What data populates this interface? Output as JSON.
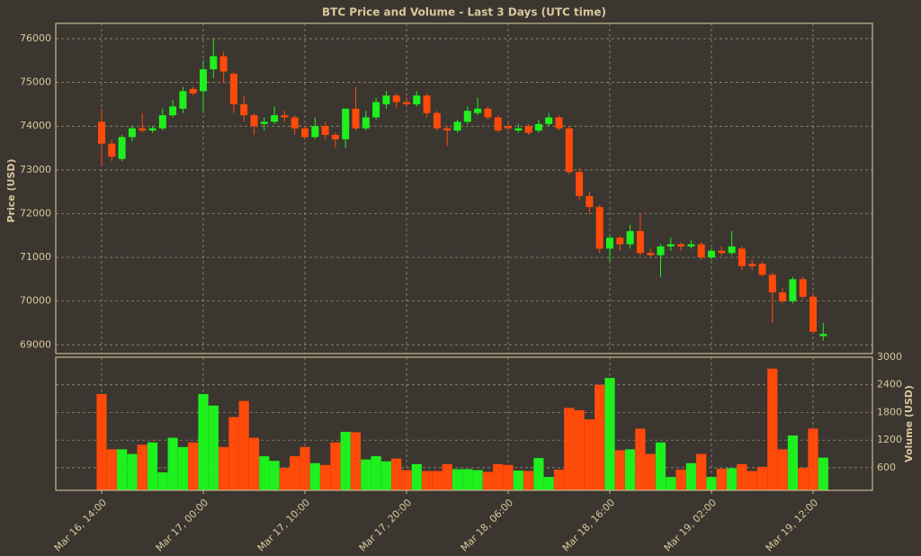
{
  "chart_data": {
    "type": "candlestick",
    "title": "BTC Price and Volume - Last 3 Days (UTC time)",
    "ylabel": "Price (USD)",
    "y2label": "Volume (USD)",
    "x": [
      "Mar 16, 14:00",
      "Mar 16, 15:00",
      "Mar 16, 16:00",
      "Mar 16, 17:00",
      "Mar 16, 18:00",
      "Mar 16, 19:00",
      "Mar 16, 20:00",
      "Mar 16, 21:00",
      "Mar 16, 22:00",
      "Mar 16, 23:00",
      "Mar 17, 00:00",
      "Mar 17, 01:00",
      "Mar 17, 02:00",
      "Mar 17, 03:00",
      "Mar 17, 04:00",
      "Mar 17, 05:00",
      "Mar 17, 06:00",
      "Mar 17, 07:00",
      "Mar 17, 08:00",
      "Mar 17, 09:00",
      "Mar 17, 10:00",
      "Mar 17, 11:00",
      "Mar 17, 12:00",
      "Mar 17, 13:00",
      "Mar 17, 14:00",
      "Mar 17, 15:00",
      "Mar 17, 16:00",
      "Mar 17, 17:00",
      "Mar 17, 18:00",
      "Mar 17, 19:00",
      "Mar 17, 20:00",
      "Mar 17, 21:00",
      "Mar 17, 22:00",
      "Mar 17, 23:00",
      "Mar 18, 00:00",
      "Mar 18, 01:00",
      "Mar 18, 02:00",
      "Mar 18, 03:00",
      "Mar 18, 04:00",
      "Mar 18, 05:00",
      "Mar 18, 06:00",
      "Mar 18, 07:00",
      "Mar 18, 08:00",
      "Mar 18, 09:00",
      "Mar 18, 10:00",
      "Mar 18, 11:00",
      "Mar 18, 12:00",
      "Mar 18, 13:00",
      "Mar 18, 14:00",
      "Mar 18, 15:00",
      "Mar 18, 16:00",
      "Mar 18, 17:00",
      "Mar 18, 18:00",
      "Mar 18, 19:00",
      "Mar 18, 20:00",
      "Mar 18, 21:00",
      "Mar 18, 22:00",
      "Mar 18, 23:00",
      "Mar 19, 00:00",
      "Mar 19, 01:00",
      "Mar 19, 02:00",
      "Mar 19, 03:00",
      "Mar 19, 04:00",
      "Mar 19, 05:00",
      "Mar 19, 06:00",
      "Mar 19, 07:00",
      "Mar 19, 08:00",
      "Mar 19, 09:00",
      "Mar 19, 10:00",
      "Mar 19, 11:00",
      "Mar 19, 12:00",
      "Mar 19, 13:00"
    ],
    "open": [
      74100,
      73600,
      73250,
      73750,
      73950,
      73900,
      73950,
      74250,
      74400,
      74850,
      74800,
      75300,
      75600,
      75200,
      74500,
      74250,
      74050,
      74100,
      74250,
      74200,
      73950,
      73750,
      74000,
      73800,
      73700,
      74400,
      73950,
      74200,
      74500,
      74700,
      74550,
      74500,
      74700,
      74300,
      73950,
      73900,
      74100,
      74300,
      74400,
      74200,
      74000,
      73900,
      74000,
      73900,
      74050,
      74200,
      73950,
      72950,
      72400,
      72150,
      71200,
      71450,
      71300,
      71600,
      71100,
      71050,
      71250,
      71300,
      71250,
      71300,
      71000,
      71150,
      71100,
      71200,
      70850,
      70850,
      70600,
      70200,
      70000,
      70500,
      70100,
      69200
    ],
    "high": [
      74400,
      73700,
      73800,
      74000,
      74300,
      74000,
      74400,
      74600,
      74900,
      74900,
      75500,
      76000,
      75700,
      75250,
      74700,
      74300,
      74200,
      74450,
      74350,
      74250,
      74000,
      74200,
      74100,
      73850,
      74400,
      74900,
      74350,
      74650,
      74800,
      74750,
      74650,
      74800,
      74750,
      74350,
      74000,
      74150,
      74450,
      74650,
      74450,
      74250,
      74100,
      74050,
      74050,
      74150,
      74300,
      74250,
      74000,
      73050,
      72500,
      72200,
      71500,
      71500,
      71750,
      72000,
      71200,
      71300,
      71450,
      71350,
      71400,
      71350,
      71200,
      71250,
      71600,
      71250,
      70950,
      70900,
      70650,
      70300,
      70550,
      70550,
      70200,
      69500
    ],
    "low": [
      73100,
      73200,
      73200,
      73650,
      73850,
      73850,
      73900,
      74200,
      74300,
      74700,
      74300,
      75100,
      75000,
      74300,
      74100,
      73800,
      73900,
      74050,
      74100,
      73800,
      73700,
      73700,
      73700,
      73500,
      73500,
      73900,
      73900,
      74150,
      74400,
      74400,
      74450,
      74450,
      74200,
      73900,
      73550,
      73850,
      74050,
      74250,
      74150,
      73850,
      73900,
      73850,
      73800,
      73850,
      74000,
      73900,
      72900,
      72300,
      72000,
      71100,
      70900,
      71150,
      71200,
      71050,
      71000,
      70550,
      71150,
      71150,
      71200,
      70950,
      70950,
      71050,
      71050,
      70700,
      70700,
      70550,
      69500,
      69950,
      69950,
      70050,
      69250,
      69100
    ],
    "close": [
      73600,
      73300,
      73750,
      73950,
      73900,
      73950,
      74250,
      74450,
      74800,
      74750,
      75300,
      75600,
      75250,
      74500,
      74250,
      74000,
      74100,
      74250,
      74200,
      73950,
      73750,
      74000,
      73800,
      73700,
      74400,
      73950,
      74200,
      74550,
      74700,
      74550,
      74500,
      74700,
      74300,
      73950,
      73900,
      74100,
      74350,
      74400,
      74200,
      73900,
      73950,
      73950,
      73850,
      74050,
      74200,
      73950,
      72950,
      72400,
      72150,
      71200,
      71450,
      71300,
      71600,
      71100,
      71050,
      71250,
      71300,
      71250,
      71300,
      71000,
      71150,
      71100,
      71250,
      70800,
      70800,
      70600,
      70200,
      70000,
      70500,
      70100,
      69300,
      69250
    ],
    "volume": [
      2200,
      1000,
      1000,
      900,
      1100,
      1150,
      500,
      1250,
      1050,
      1150,
      2200,
      1950,
      1050,
      1700,
      2050,
      1250,
      850,
      750,
      600,
      850,
      1050,
      700,
      660,
      1150,
      1380,
      1370,
      780,
      850,
      740,
      800,
      550,
      680,
      530,
      530,
      680,
      570,
      570,
      550,
      510,
      680,
      660,
      540,
      530,
      810,
      400,
      560,
      1900,
      1850,
      1650,
      2400,
      2550,
      980,
      1000,
      1450,
      900,
      1150,
      400,
      560,
      700,
      900,
      400,
      580,
      590,
      680,
      530,
      620,
      2750,
      1000,
      1300,
      600,
      1450,
      820
    ],
    "ylim": [
      68800,
      76350
    ],
    "yticks": [
      69000,
      70000,
      71000,
      72000,
      73000,
      74000,
      75000,
      76000
    ],
    "y2lim": [
      110,
      3000
    ],
    "y2ticks": [
      600,
      1200,
      1800,
      2400,
      3000
    ],
    "xticks": [
      "Mar 16, 14:00",
      "Mar 17, 00:00",
      "Mar 17, 10:00",
      "Mar 17, 20:00",
      "Mar 18, 06:00",
      "Mar 18, 16:00",
      "Mar 19, 02:00",
      "Mar 19, 12:00"
    ],
    "up_color": "#1ef01e",
    "down_color": "#ff4a0a",
    "grid": true
  }
}
